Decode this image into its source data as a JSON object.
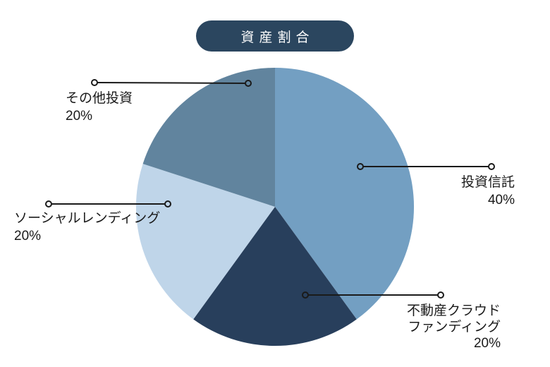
{
  "page": {
    "background_color": "#ffffff",
    "text_color": "#1a1a1a"
  },
  "title_badge": {
    "text": "資産割合",
    "bg_color": "#2B465F",
    "text_color": "#ffffff"
  },
  "chart_data": {
    "type": "pie",
    "title": "資産割合",
    "total": 100,
    "unit": "%",
    "start_angle_deg": 0,
    "direction": "clockwise",
    "legend": "none",
    "leader_line_color": "#1a1a1a",
    "label_text_color": "#1a1a1a",
    "slices": [
      {
        "label": "投資信託",
        "value": 40,
        "pct_text": "40%",
        "color": "#739FC2",
        "label_lines": [
          "投資信託"
        ],
        "label_side": "right"
      },
      {
        "label": "不動産クラウドファンディング",
        "value": 20,
        "pct_text": "20%",
        "color": "#283F5C",
        "label_lines": [
          "不動産クラウド",
          "ファンディング"
        ],
        "label_side": "right"
      },
      {
        "label": "ソーシャルレンディング",
        "value": 20,
        "pct_text": "20%",
        "color": "#BFD5E9",
        "label_lines": [
          "ソーシャルレンディング"
        ],
        "label_side": "left"
      },
      {
        "label": "その他投資",
        "value": 20,
        "pct_text": "20%",
        "color": "#61849E",
        "label_lines": [
          "その他投資"
        ],
        "label_side": "left"
      }
    ]
  }
}
